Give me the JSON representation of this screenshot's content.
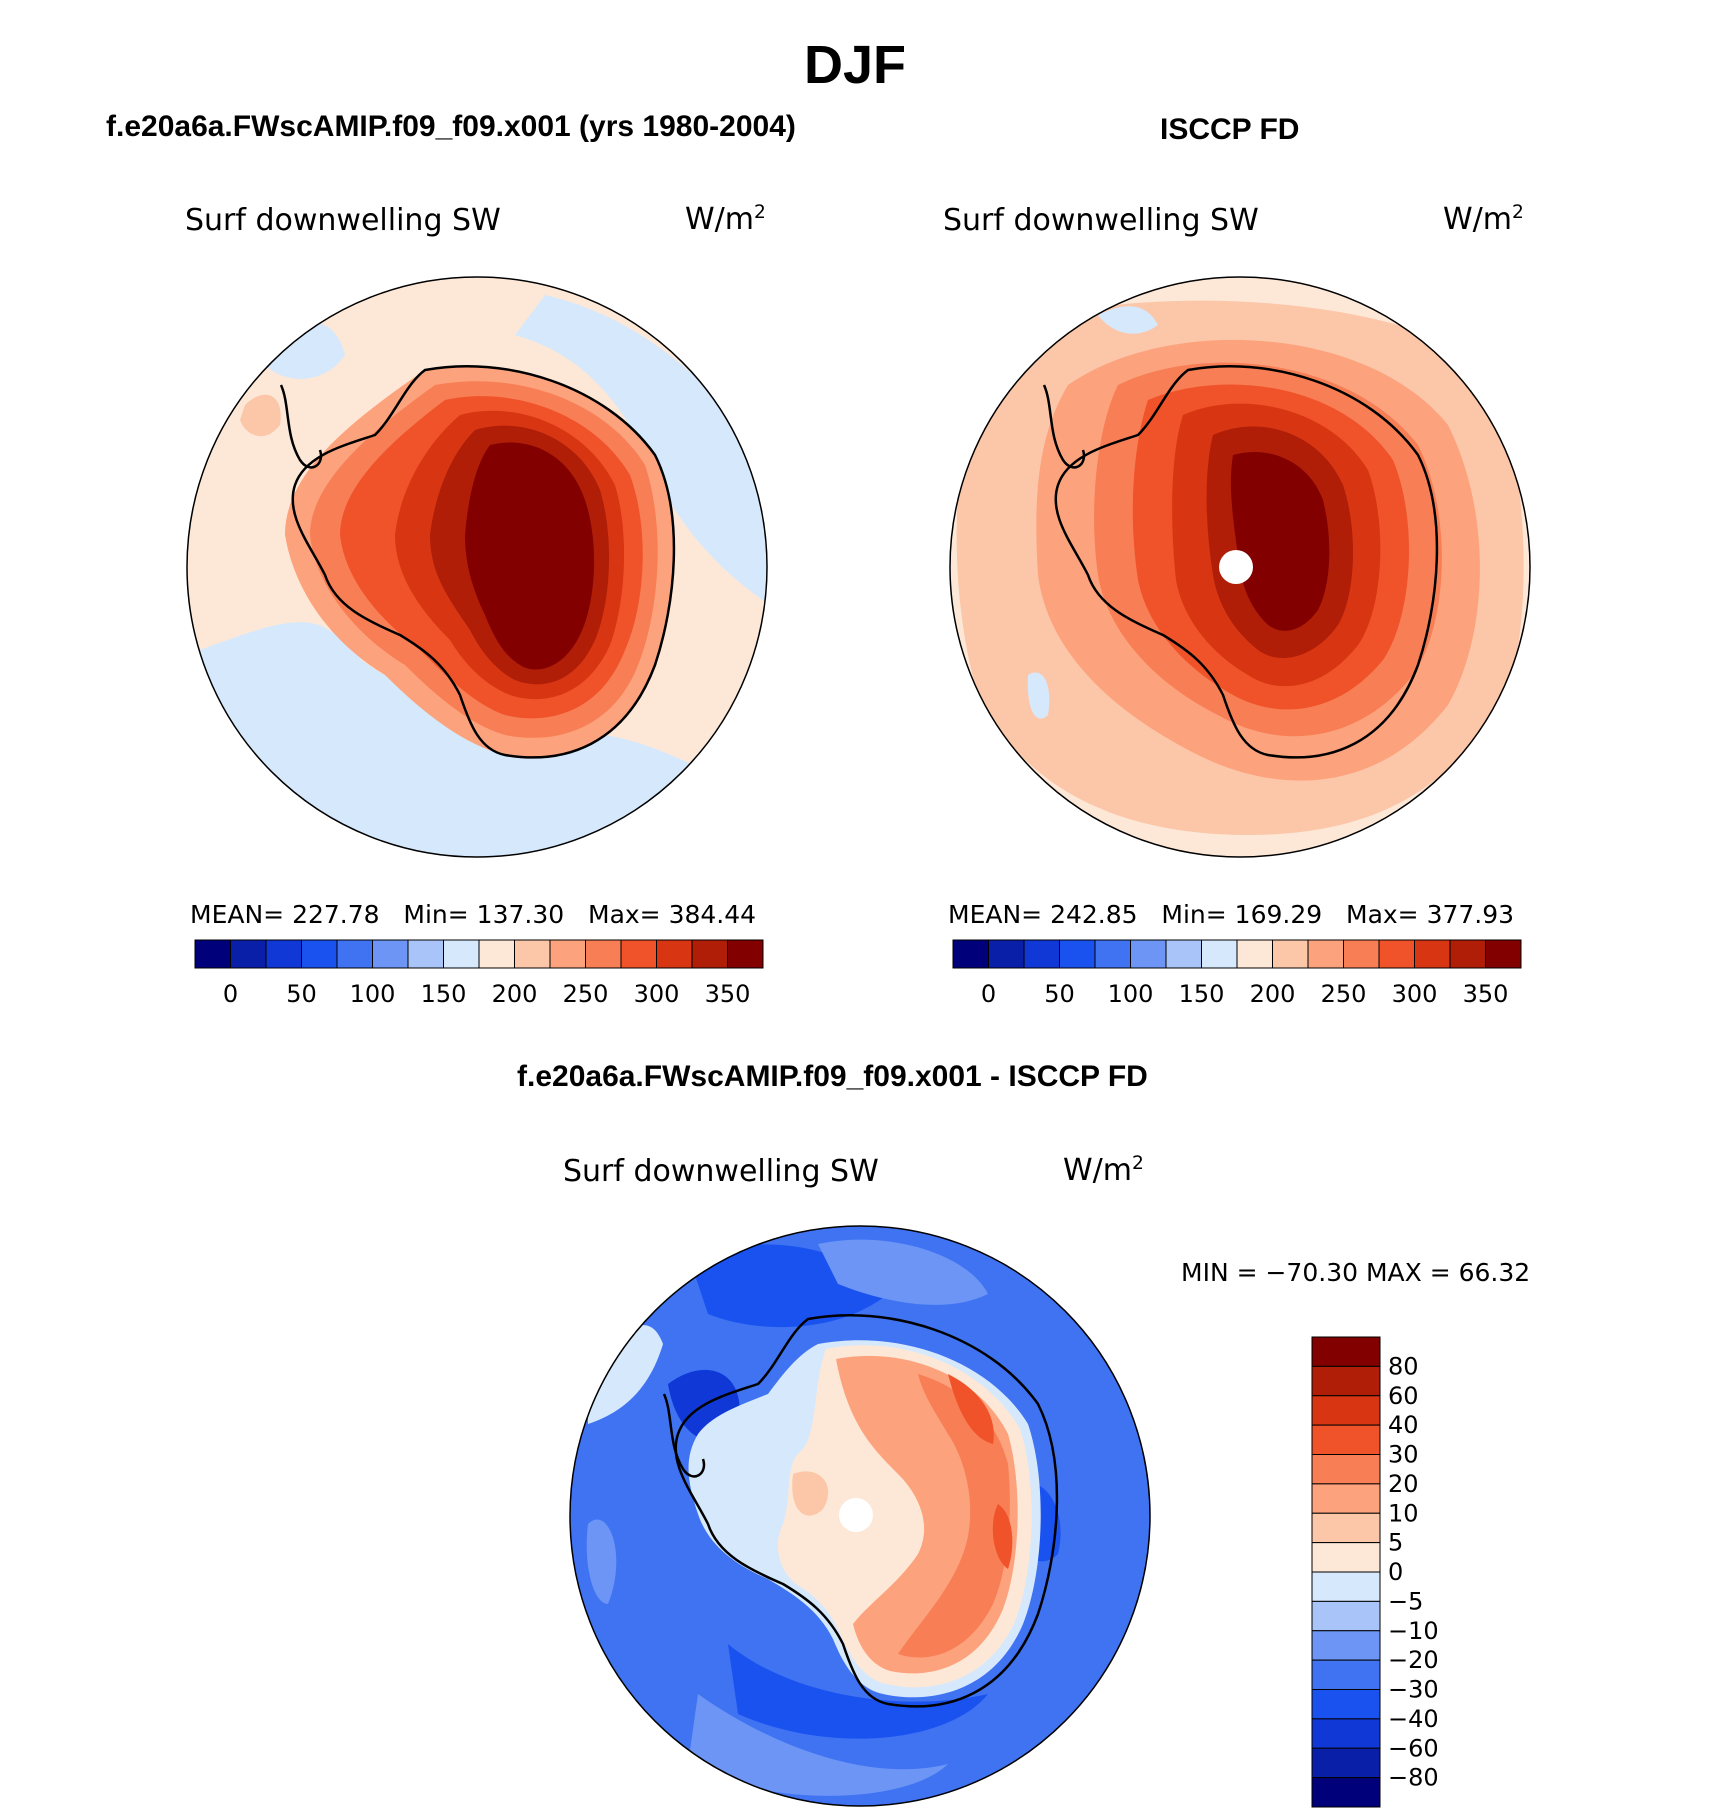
{
  "figure": {
    "title": "DJF",
    "variable": "Surf downwelling SW",
    "units_base": "W/m",
    "units_exp": "2"
  },
  "panels": [
    {
      "header": "f.e20a6a.FWscAMIP.f09_f09.x001 (yrs 1980-2004)",
      "mean_label": "MEAN=",
      "mean": "227.78",
      "min_label": "Min=",
      "min": "137.30",
      "max_label": "Max=",
      "max": "384.44"
    },
    {
      "header": "ISCCP FD",
      "mean_label": "MEAN=",
      "mean": "242.85",
      "min_label": "Min=",
      "min": "169.29",
      "max_label": "Max=",
      "max": "377.93"
    }
  ],
  "abs_colorbar": {
    "colors": [
      "#00007a",
      "#0a1fa8",
      "#1038d6",
      "#1a52f0",
      "#3f73f2",
      "#6c95f5",
      "#a8c4f8",
      "#d6e8fb",
      "#fde8d8",
      "#fcc7a8",
      "#fca37e",
      "#f87e55",
      "#f0532a",
      "#d83512",
      "#b01e08",
      "#820000"
    ],
    "ticks": [
      "0",
      "50",
      "100",
      "150",
      "200",
      "250",
      "300",
      "350"
    ]
  },
  "diff_panel": {
    "header": "f.e20a6a.FWscAMIP.f09_f09.x001 - ISCCP FD",
    "minmax_text": "MIN = −70.30 MAX =   66.32"
  },
  "diff_colorbar": {
    "colors": [
      "#00007a",
      "#0a1fa8",
      "#1038d6",
      "#1a52f0",
      "#3f73f2",
      "#6c95f5",
      "#a8c4f8",
      "#d6e8fb",
      "#fde8d8",
      "#fcc7a8",
      "#fca37e",
      "#f87e55",
      "#f0532a",
      "#d83512",
      "#b01e08",
      "#820000"
    ],
    "levels": [
      "80",
      "60",
      "40",
      "30",
      "20",
      "10",
      "5",
      "0",
      "−5",
      "−10",
      "−20",
      "−30",
      "−40",
      "−60",
      "−80"
    ]
  },
  "chart_data": {
    "type": "heatmap",
    "title": "DJF",
    "projection": "south polar stereographic",
    "abs_levels": [
      0,
      25,
      50,
      75,
      100,
      125,
      150,
      175,
      200,
      225,
      250,
      275,
      300,
      325,
      350
    ],
    "diff_levels": [
      -80,
      -60,
      -40,
      -30,
      -20,
      -10,
      -5,
      0,
      5,
      10,
      20,
      30,
      40,
      60,
      80
    ],
    "panels": [
      {
        "name": "f.e20a6a.FWscAMIP.f09_f09.x001 (yrs 1980-2004)",
        "mean": 227.78,
        "min": 137.3,
        "max": 384.44
      },
      {
        "name": "ISCCP FD",
        "mean": 242.85,
        "min": 169.29,
        "max": 377.93
      },
      {
        "name": "f.e20a6a.FWscAMIP.f09_f09.x001 - ISCCP FD",
        "min": -70.3,
        "max": 66.32
      }
    ]
  }
}
